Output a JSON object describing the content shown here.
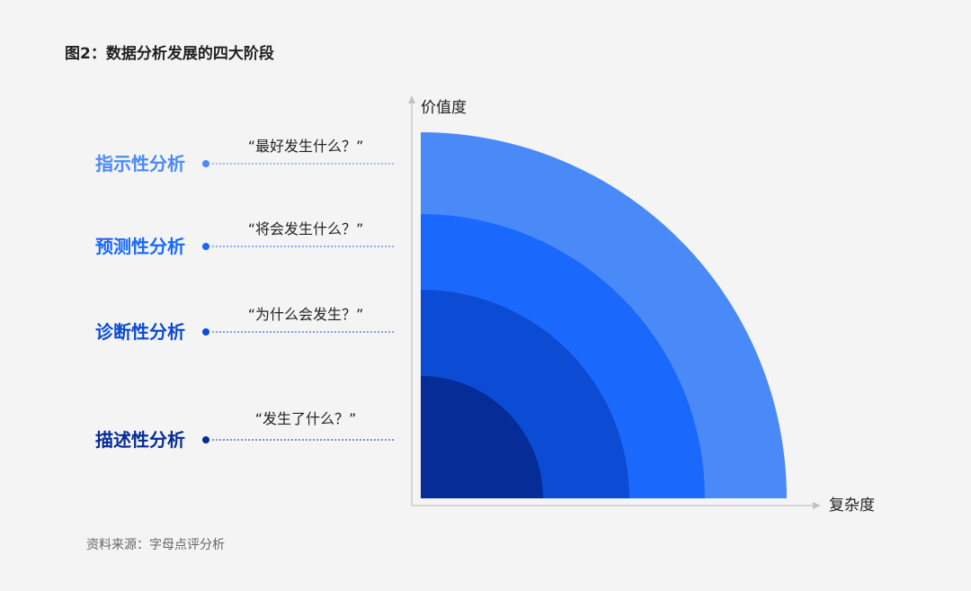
{
  "title": "图2：数据分析发展的四大阶段",
  "source": "资料来源：字母点评分析",
  "axes": {
    "y_label": "价值度",
    "x_label": "复杂度",
    "axis_color": "#c2c2c2"
  },
  "stages": [
    {
      "name": "指示性分析",
      "question": "“最好发生什么？”",
      "color": "#4a8af8"
    },
    {
      "name": "预测性分析",
      "question": "“将会发生什么？”",
      "color": "#1a69fc"
    },
    {
      "name": "诊断性分析",
      "question": "“为什么会发生？”",
      "color": "#0c4bd3"
    },
    {
      "name": "描述性分析",
      "question": "“发生了什么？”",
      "color": "#052c97"
    }
  ]
}
